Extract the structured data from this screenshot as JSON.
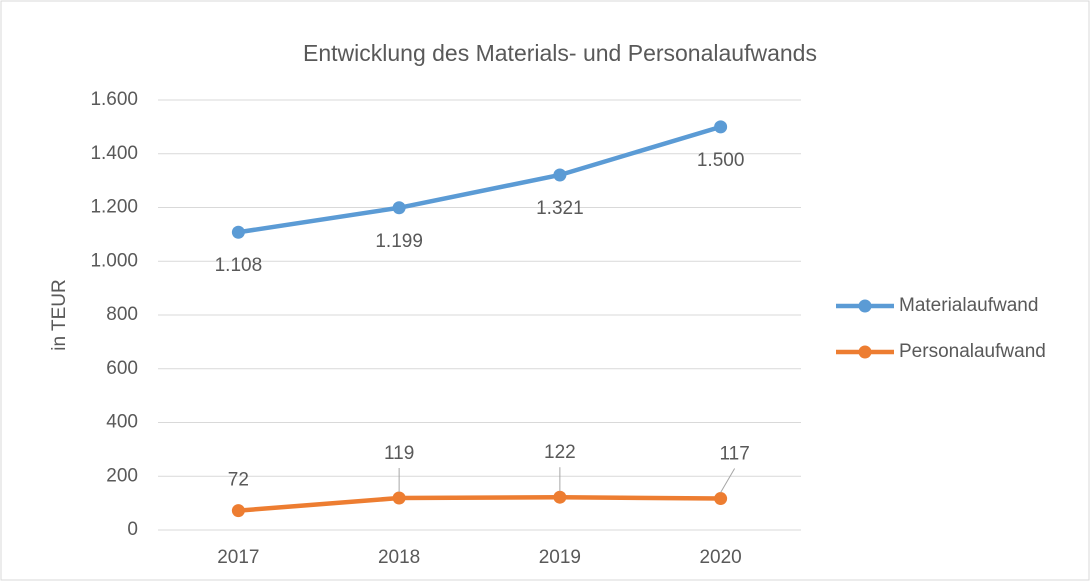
{
  "chart_data": {
    "type": "line",
    "title": "Entwicklung des Materials- und Personalaufwands",
    "y_label": "in TEUR",
    "categories": [
      "2017",
      "2018",
      "2019",
      "2020"
    ],
    "series": [
      {
        "name": "Materialaufwand",
        "color": "#5b9bd5",
        "values": [
          1108,
          1199,
          1321,
          1500
        ],
        "value_labels": [
          "1.108",
          "1.199",
          "1.321",
          "1.500"
        ]
      },
      {
        "name": "Personalaufwand",
        "color": "#ed7d31",
        "values": [
          72,
          119,
          122,
          117
        ]
      }
    ],
    "ylim": [
      0,
      1600
    ],
    "yticks": [
      0,
      200,
      400,
      600,
      800,
      {
        "value": 1000,
        "label": "1.000"
      },
      {
        "value": 1200,
        "label": "1.200"
      },
      {
        "value": 1400,
        "label": "1.400"
      },
      {
        "value": 1600,
        "label": "1.600"
      }
    ],
    "grid": true,
    "legend": "right"
  }
}
